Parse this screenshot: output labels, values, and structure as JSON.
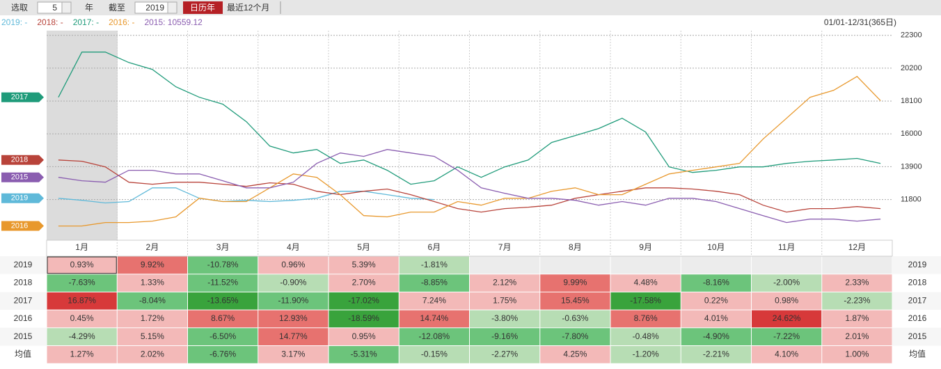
{
  "toolbar": {
    "select_label": "选取",
    "years": "5",
    "year_unit": "年",
    "until_label": "截至",
    "until_year": "2019",
    "buttons": [
      "日历年",
      "最近12个月"
    ]
  },
  "chart_data": {
    "type": "line",
    "range_label": "01/01-12/31(365日)",
    "categories": [
      null,
      "1月",
      null,
      null,
      "2月",
      null,
      null,
      "3月",
      null,
      null,
      "4月",
      null,
      null,
      "5月",
      null,
      null,
      "6月",
      null,
      null,
      "7月",
      null,
      null,
      "8月",
      null,
      null,
      "9月",
      null,
      null,
      "10月",
      null,
      null,
      "11月",
      null,
      null,
      "12月",
      null
    ],
    "ylim": [
      9200,
      22600
    ],
    "yticks": [
      11800,
      13900,
      16000,
      18100,
      20200,
      22300
    ],
    "grid": true,
    "series": [
      {
        "name": "2019",
        "legend": "2019: -",
        "color": "#5fb9d9",
        "values": [
          11880,
          11750,
          11580,
          11670,
          12550,
          12550,
          11880,
          11670,
          11750,
          11670,
          11750,
          11880,
          12330,
          12330,
          12110,
          11880,
          11800,
          null,
          null,
          null,
          null,
          null,
          null,
          null,
          null,
          null,
          null,
          null,
          null,
          null,
          null,
          null,
          null,
          null,
          null,
          null
        ]
      },
      {
        "name": "2018",
        "legend": "2018: -",
        "color": "#b8433a",
        "values": [
          14330,
          14250,
          13890,
          12910,
          12780,
          12910,
          12910,
          12780,
          12640,
          12870,
          12780,
          12330,
          12110,
          12330,
          12470,
          12110,
          11670,
          11220,
          11000,
          11220,
          11310,
          11440,
          11880,
          12110,
          12330,
          12550,
          12550,
          12470,
          12330,
          12110,
          11440,
          11000,
          11220,
          11220,
          11350,
          11220
        ]
      },
      {
        "name": "2017",
        "legend": "2017: -",
        "color": "#1f9b7a",
        "values": [
          18340,
          21230,
          21230,
          20560,
          20120,
          19010,
          18340,
          17900,
          16780,
          15220,
          14780,
          15000,
          14110,
          14330,
          13670,
          12780,
          13000,
          13890,
          13220,
          13890,
          14330,
          15450,
          15890,
          16340,
          17000,
          16120,
          13890,
          13530,
          13670,
          13890,
          13890,
          14110,
          14250,
          14330,
          14430,
          14110
        ]
      },
      {
        "name": "2016",
        "legend": "2016: -",
        "color": "#e8982c",
        "values": [
          10110,
          10110,
          10330,
          10330,
          10420,
          10690,
          11890,
          11670,
          11670,
          12550,
          13440,
          13220,
          12110,
          10770,
          10690,
          11000,
          11000,
          11670,
          11440,
          11880,
          11880,
          12330,
          12550,
          12110,
          12110,
          12780,
          13440,
          13670,
          13890,
          14110,
          15670,
          17000,
          18340,
          18780,
          19670,
          18120
        ]
      },
      {
        "name": "2015",
        "legend": "2015: 10559.12",
        "color": "#8a5db0",
        "values": [
          13220,
          13000,
          12910,
          13670,
          13670,
          13440,
          13440,
          13000,
          12550,
          12550,
          12910,
          14110,
          14780,
          14560,
          15000,
          14780,
          14560,
          13670,
          12550,
          12200,
          11880,
          11880,
          11750,
          11440,
          11670,
          11440,
          11880,
          11880,
          11670,
          11220,
          10770,
          10330,
          10550,
          10550,
          10420,
          10550
        ]
      }
    ]
  },
  "table": {
    "rows": [
      {
        "label": "2019",
        "cells": [
          "0.93%",
          "9.92%",
          "-10.78%",
          "0.96%",
          "5.39%",
          "-1.81%"
        ]
      },
      {
        "label": "2018",
        "cells": [
          "-7.63%",
          "1.33%",
          "-11.52%",
          "-0.90%",
          "2.70%",
          "-8.85%",
          "2.12%",
          "9.99%",
          "4.48%",
          "-8.16%",
          "-2.00%",
          "2.33%"
        ]
      },
      {
        "label": "2017",
        "cells": [
          "16.87%",
          "-8.04%",
          "-13.65%",
          "-11.90%",
          "-17.02%",
          "7.24%",
          "1.75%",
          "15.45%",
          "-17.58%",
          "0.22%",
          "0.98%",
          "-2.23%"
        ]
      },
      {
        "label": "2016",
        "cells": [
          "0.45%",
          "1.72%",
          "8.67%",
          "12.93%",
          "-18.59%",
          "14.74%",
          "-3.80%",
          "-0.63%",
          "8.76%",
          "4.01%",
          "24.62%",
          "1.87%"
        ]
      },
      {
        "label": "2015",
        "cells": [
          "-4.29%",
          "5.15%",
          "-6.50%",
          "14.77%",
          "0.95%",
          "-12.08%",
          "-9.16%",
          "-7.80%",
          "-0.48%",
          "-4.90%",
          "-7.22%",
          "2.01%"
        ]
      },
      {
        "label": "均值",
        "cells": [
          "1.27%",
          "2.02%",
          "-6.76%",
          "3.17%",
          "-5.31%",
          "-0.15%",
          "-2.27%",
          "4.25%",
          "-1.20%",
          "-2.21%",
          "4.10%",
          "1.00%"
        ]
      }
    ]
  }
}
